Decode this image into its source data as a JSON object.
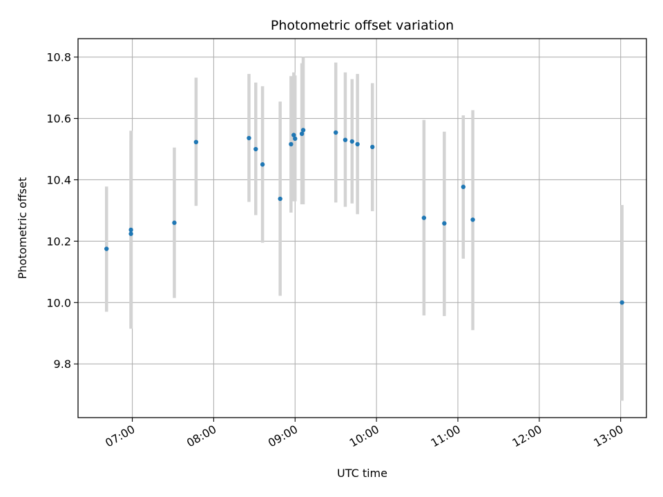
{
  "chart_data": {
    "type": "scatter",
    "title": "Photometric offset variation",
    "xlabel": "UTC time",
    "ylabel": "Photometric offset",
    "x_axis_type": "time",
    "xlim": [
      "06:20",
      "13:19"
    ],
    "ylim": [
      9.625,
      10.86
    ],
    "x_ticks": [
      "07:00",
      "08:00",
      "09:00",
      "10:00",
      "11:00",
      "12:00",
      "13:00"
    ],
    "y_ticks": [
      9.8,
      10.0,
      10.2,
      10.4,
      10.6,
      10.8
    ],
    "y_tick_labels": [
      "9.8",
      "10.0",
      "10.2",
      "10.4",
      "10.6",
      "10.8"
    ],
    "grid": true,
    "legend": "none",
    "colors": {
      "point": "#1f77b4",
      "errorbar": "#d3d3d3",
      "grid": "#b0b0b0",
      "axes": "#000000"
    },
    "series": [
      {
        "points": [
          {
            "x": "06:41",
            "y": 10.175,
            "y_low": 9.97,
            "y_high": 10.378
          },
          {
            "x": "06:59",
            "y": 10.237,
            "y_low": 9.915,
            "y_high": 10.56
          },
          {
            "x": "06:59",
            "y": 10.224,
            "y_low": 9.915,
            "y_high": 10.53
          },
          {
            "x": "07:31",
            "y": 10.26,
            "y_low": 10.015,
            "y_high": 10.505
          },
          {
            "x": "07:47",
            "y": 10.523,
            "y_low": 10.315,
            "y_high": 10.733
          },
          {
            "x": "08:26",
            "y": 10.536,
            "y_low": 10.328,
            "y_high": 10.745
          },
          {
            "x": "08:31",
            "y": 10.5,
            "y_low": 10.285,
            "y_high": 10.717
          },
          {
            "x": "08:36",
            "y": 10.45,
            "y_low": 10.195,
            "y_high": 10.705
          },
          {
            "x": "08:49",
            "y": 10.338,
            "y_low": 10.022,
            "y_high": 10.655
          },
          {
            "x": "08:57",
            "y": 10.516,
            "y_low": 10.293,
            "y_high": 10.738
          },
          {
            "x": "08:59",
            "y": 10.546,
            "y_low": 10.33,
            "y_high": 10.75
          },
          {
            "x": "09:00",
            "y": 10.534,
            "y_low": 10.33,
            "y_high": 10.74
          },
          {
            "x": "09:05",
            "y": 10.55,
            "y_low": 10.32,
            "y_high": 10.78
          },
          {
            "x": "09:06",
            "y": 10.562,
            "y_low": 10.32,
            "y_high": 10.8
          },
          {
            "x": "09:30",
            "y": 10.554,
            "y_low": 10.326,
            "y_high": 10.782
          },
          {
            "x": "09:37",
            "y": 10.53,
            "y_low": 10.312,
            "y_high": 10.75
          },
          {
            "x": "09:42",
            "y": 10.525,
            "y_low": 10.323,
            "y_high": 10.728
          },
          {
            "x": "09:46",
            "y": 10.516,
            "y_low": 10.288,
            "y_high": 10.745
          },
          {
            "x": "09:57",
            "y": 10.507,
            "y_low": 10.298,
            "y_high": 10.715
          },
          {
            "x": "10:35",
            "y": 10.276,
            "y_low": 9.958,
            "y_high": 10.595
          },
          {
            "x": "10:50",
            "y": 10.258,
            "y_low": 9.956,
            "y_high": 10.557
          },
          {
            "x": "11:04",
            "y": 10.377,
            "y_low": 10.143,
            "y_high": 10.61
          },
          {
            "x": "11:11",
            "y": 10.27,
            "y_low": 9.91,
            "y_high": 10.627
          },
          {
            "x": "13:01",
            "y": 10.0,
            "y_low": 9.68,
            "y_high": 10.318
          }
        ]
      }
    ]
  }
}
